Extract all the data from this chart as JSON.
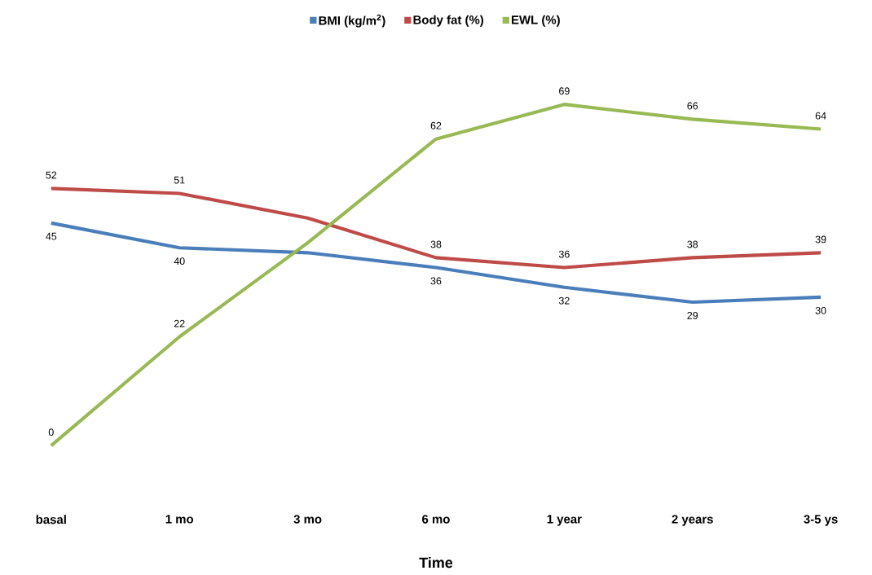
{
  "chart_data": {
    "type": "line",
    "xlabel": "Time",
    "categories": [
      "basal",
      "1 mo",
      "3 mo",
      "6 mo",
      "1 year",
      "2 years",
      "3-5 ys"
    ],
    "series": [
      {
        "name": "BMI (kg/m$^{2}$)",
        "color": "#4a7ebb",
        "values": [
          45,
          40,
          39,
          36,
          32,
          29,
          30
        ],
        "value_labels": [
          "45",
          "40",
          null,
          "36",
          "32",
          "29",
          "30"
        ]
      },
      {
        "name": "Body fat (%)",
        "color": "#be4b48",
        "values": [
          52,
          51,
          46,
          38,
          36,
          38,
          39
        ],
        "value_labels": [
          "52",
          "51",
          null,
          "38",
          "36",
          "38",
          "39"
        ]
      },
      {
        "name": "EWL (%)",
        "color": "#98b954",
        "values": [
          0,
          22,
          41,
          62,
          69,
          66,
          64
        ],
        "value_labels": [
          "0",
          "22",
          null,
          "62",
          "69",
          "66",
          "64"
        ]
      }
    ],
    "legend": "top",
    "marker": "none",
    "line_style": "solid",
    "tick_labels": "x"
  }
}
